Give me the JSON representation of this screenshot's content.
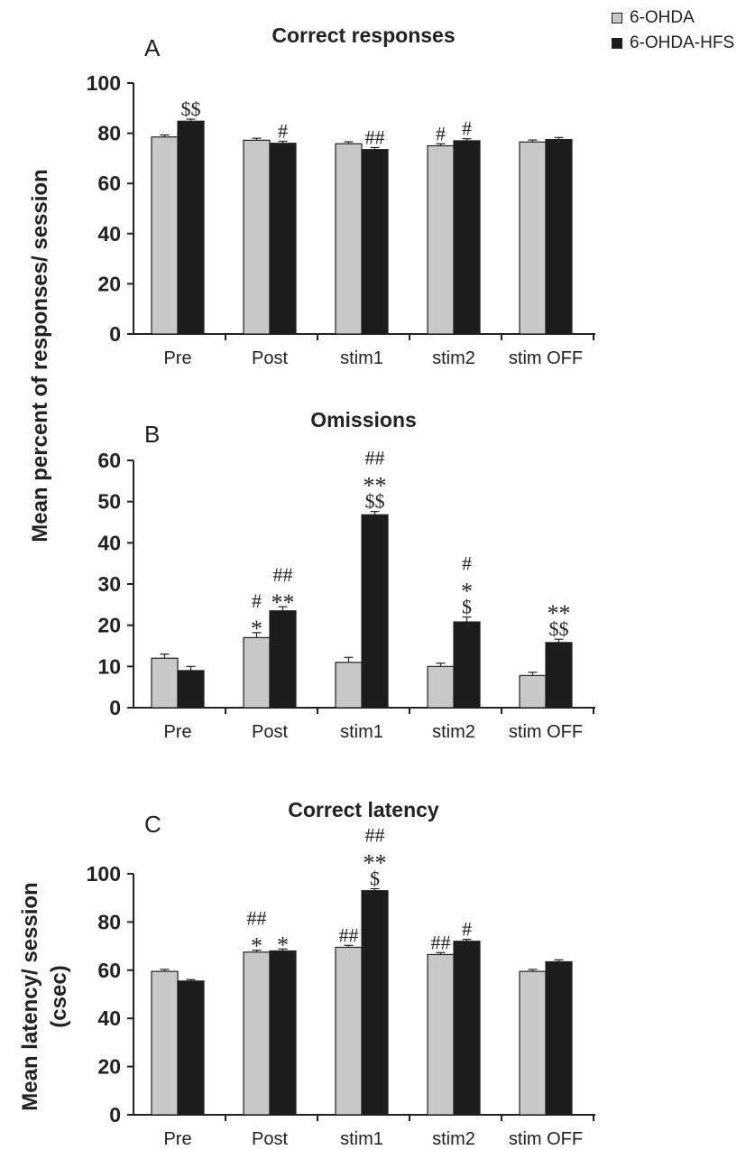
{
  "legend": {
    "items": [
      {
        "label": "6-OHDA",
        "color": "#c8c8c8"
      },
      {
        "label": "6-OHDA-HFS",
        "color": "#1c1c1c"
      }
    ]
  },
  "ylabel_shared": "Mean percent of responses/ session",
  "ylabel_c": [
    "Mean latency/ session",
    "(csec)"
  ],
  "chart_data": [
    {
      "type": "bar",
      "panel": "A",
      "title": "Correct responses",
      "categories": [
        "Pre",
        "Post",
        "stim1",
        "stim2",
        "stim OFF"
      ],
      "series": [
        {
          "name": "6-OHDA",
          "values": [
            78.5,
            77.2,
            75.8,
            75.0,
            76.5
          ],
          "errors": [
            0.8,
            0.8,
            0.8,
            0.8,
            0.8
          ],
          "annotations": [
            [],
            [],
            [],
            [
              "#"
            ],
            []
          ]
        },
        {
          "name": "6-OHDA-HFS",
          "values": [
            84.8,
            76.0,
            73.5,
            77.0,
            77.5
          ],
          "errors": [
            0.8,
            0.8,
            0.8,
            0.8,
            0.8
          ],
          "annotations": [
            [
              "$$"
            ],
            [
              "#"
            ],
            [
              "##"
            ],
            [
              "#"
            ],
            []
          ]
        }
      ],
      "ylim": [
        0,
        100
      ],
      "yticks": [
        "0",
        "20",
        "40",
        "60",
        "80",
        "100"
      ]
    },
    {
      "type": "bar",
      "panel": "B",
      "title": "Omissions",
      "categories": [
        "Pre",
        "Post",
        "stim1",
        "stim2",
        "stim OFF"
      ],
      "series": [
        {
          "name": "6-OHDA",
          "values": [
            12.0,
            17.0,
            11.0,
            10.0,
            7.8
          ],
          "errors": [
            1.0,
            1.2,
            1.2,
            0.8,
            0.8
          ],
          "annotations": [
            [],
            [
              "#",
              "*"
            ],
            [],
            [],
            []
          ]
        },
        {
          "name": "6-OHDA-HFS",
          "values": [
            9.0,
            23.5,
            46.8,
            20.8,
            15.8
          ],
          "errors": [
            1.0,
            1.0,
            0.8,
            1.2,
            0.8
          ],
          "annotations": [
            [],
            [
              "##",
              "**"
            ],
            [
              "##",
              "**",
              "$$"
            ],
            [
              "#",
              "*",
              "$"
            ],
            [
              "**",
              "$$"
            ]
          ]
        }
      ],
      "ylim": [
        0,
        60
      ],
      "yticks": [
        "0",
        "10",
        "20",
        "30",
        "40",
        "50",
        "60"
      ]
    },
    {
      "type": "bar",
      "panel": "C",
      "title": "Correct latency",
      "categories": [
        "Pre",
        "Post",
        "stim1",
        "stim2",
        "stim OFF"
      ],
      "series": [
        {
          "name": "6-OHDA",
          "values": [
            59.5,
            67.5,
            69.5,
            66.5,
            59.5
          ],
          "errors": [
            0.8,
            0.8,
            0.8,
            0.8,
            0.8
          ],
          "annotations": [
            [],
            [
              "##",
              "*"
            ],
            [
              "##"
            ],
            [
              "##"
            ],
            []
          ]
        },
        {
          "name": "6-OHDA-HFS",
          "values": [
            55.5,
            68.0,
            93.0,
            72.0,
            63.5
          ],
          "errors": [
            0.6,
            0.8,
            0.8,
            0.8,
            0.8
          ],
          "annotations": [
            [],
            [
              "*"
            ],
            [
              "##",
              "**",
              "$"
            ],
            [
              "#"
            ],
            []
          ]
        }
      ],
      "ylim": [
        0,
        100
      ],
      "yticks": [
        "0",
        "20",
        "40",
        "60",
        "80",
        "100"
      ]
    }
  ]
}
